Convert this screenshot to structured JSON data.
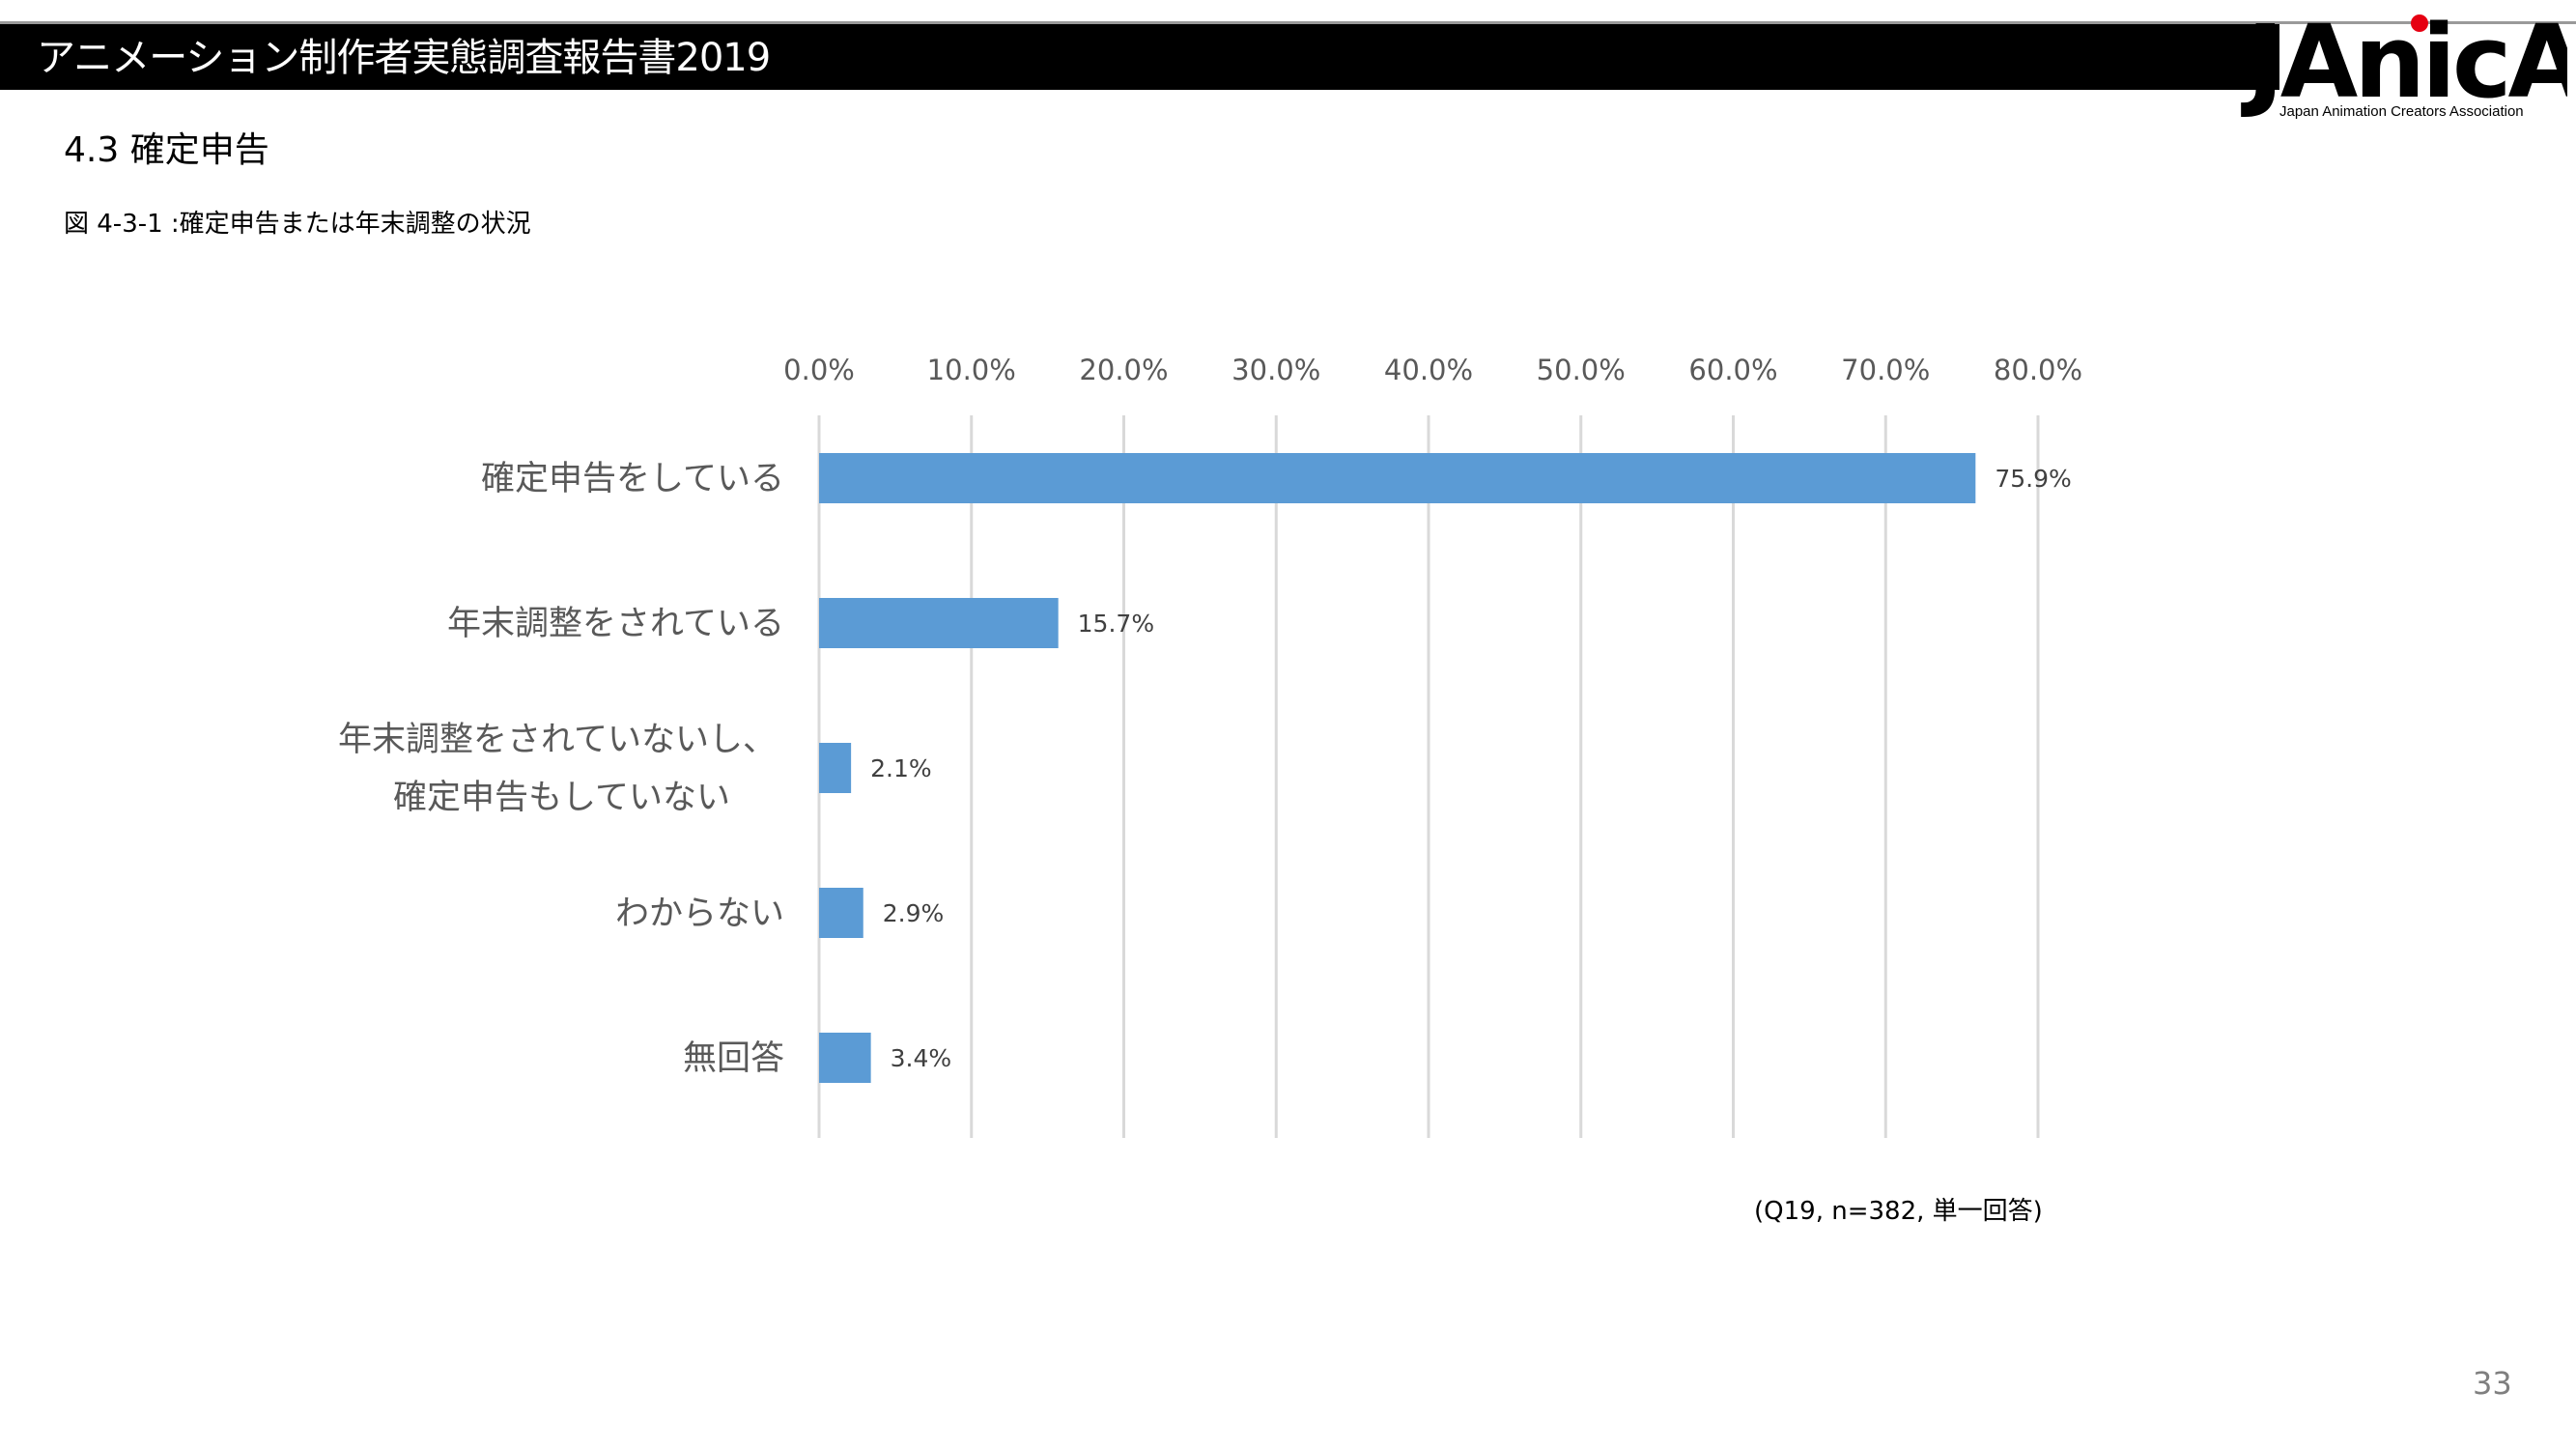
{
  "header": {
    "title": "アニメーション制作者実態調査報告書2019",
    "logo_text": "JAnicA",
    "logo_subtitle": "Japan Animation Creators Association"
  },
  "section": {
    "heading": "4.3  確定申告",
    "figure_caption": "図 4-3-1 :確定申告または年末調整の状況"
  },
  "chart_data": {
    "type": "bar",
    "orientation": "horizontal",
    "title": "",
    "categories": [
      [
        "確定申告をしている"
      ],
      [
        "年末調整をされている"
      ],
      [
        "年末調整をされていないし、",
        "確定申告もしていない"
      ],
      [
        "わからない"
      ],
      [
        "無回答"
      ]
    ],
    "values": [
      75.9,
      15.7,
      2.1,
      2.9,
      3.4
    ],
    "data_labels": [
      "75.9%",
      "15.7%",
      "2.1%",
      "2.9%",
      "3.4%"
    ],
    "xlim": [
      0,
      80
    ],
    "ticks": [
      0,
      10,
      20,
      30,
      40,
      50,
      60,
      70,
      80
    ],
    "tick_labels": [
      "0.0%",
      "10.0%",
      "20.0%",
      "30.0%",
      "40.0%",
      "50.0%",
      "60.0%",
      "70.0%",
      "80.0%"
    ],
    "axis_position": "top",
    "grid": true,
    "bar_color": "#5b9bd5",
    "grid_color": "#d9d9d9"
  },
  "note": "(Q19, n=382, 単一回答)",
  "page_number": "33"
}
